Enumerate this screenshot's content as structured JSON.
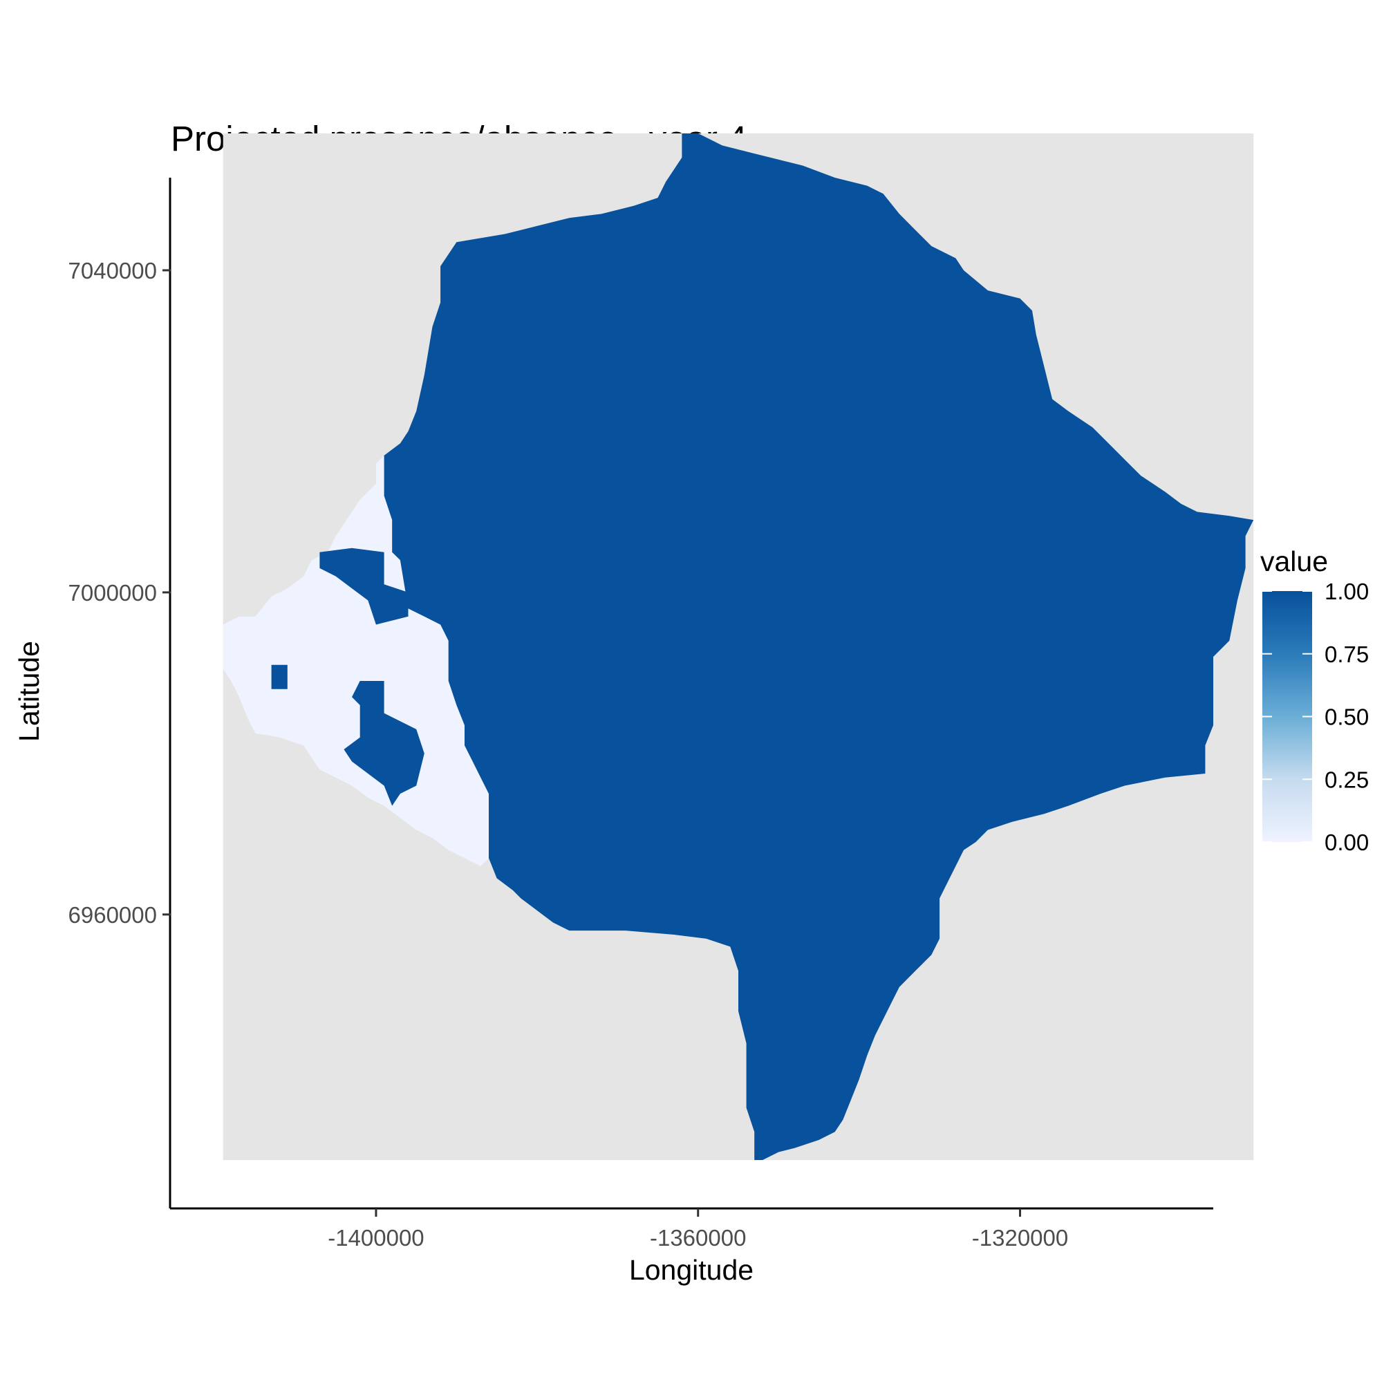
{
  "chart_data": {
    "type": "heatmap",
    "title": "Projected presence/absence - year 4",
    "xlabel": "Longitude",
    "ylabel": "Latitude",
    "xlim": [
      -1425500,
      -1296000
    ],
    "ylim": [
      6923500,
      7051500
    ],
    "x_ticks": [
      {
        "value": -1400000,
        "label": "-1400000"
      },
      {
        "value": -1360000,
        "label": "-1360000"
      },
      {
        "value": -1320000,
        "label": "-1320000"
      }
    ],
    "y_ticks": [
      {
        "value": 7040000,
        "label": "7040000"
      },
      {
        "value": 7000000,
        "label": "7000000"
      },
      {
        "value": 6960000,
        "label": "6960000"
      }
    ],
    "raster_extent": {
      "x": [
        -1419000,
        -1291000
      ],
      "y": [
        6929500,
        7057000
      ]
    },
    "na_color": "#e5e5e5",
    "scale": {
      "low": "#eff3ff",
      "mid": "#6baed6",
      "high": "#08519c"
    },
    "presence_region": {
      "value": 1,
      "polygon": [
        [
          -1360000,
          7057000
        ],
        [
          -1357000,
          7055500
        ],
        [
          -1353000,
          7054500
        ],
        [
          -1347000,
          7053000
        ],
        [
          -1343000,
          7051500
        ],
        [
          -1339000,
          7050500
        ],
        [
          -1337000,
          7049500
        ],
        [
          -1335000,
          7047000
        ],
        [
          -1333000,
          7045000
        ],
        [
          -1331000,
          7043000
        ],
        [
          -1328000,
          7041500
        ],
        [
          -1327000,
          7040000
        ],
        [
          -1324000,
          7037500
        ],
        [
          -1320000,
          7036500
        ],
        [
          -1318500,
          7035000
        ],
        [
          -1318000,
          7032000
        ],
        [
          -1317000,
          7028000
        ],
        [
          -1316000,
          7024000
        ],
        [
          -1314000,
          7022500
        ],
        [
          -1311000,
          7020500
        ],
        [
          -1309000,
          7018500
        ],
        [
          -1307000,
          7016500
        ],
        [
          -1305000,
          7014500
        ],
        [
          -1302000,
          7012500
        ],
        [
          -1300000,
          7011000
        ],
        [
          -1298000,
          7010000
        ],
        [
          -1294000,
          7009500
        ],
        [
          -1291000,
          7009000
        ],
        [
          -1292000,
          7007000
        ],
        [
          -1292000,
          7003000
        ],
        [
          -1293000,
          6999000
        ],
        [
          -1294000,
          6994000
        ],
        [
          -1296000,
          6992000
        ],
        [
          -1296000,
          6983500
        ],
        [
          -1297000,
          6981000
        ],
        [
          -1297000,
          6977500
        ],
        [
          -1302000,
          6977000
        ],
        [
          -1307000,
          6976000
        ],
        [
          -1310000,
          6975000
        ],
        [
          -1314000,
          6973500
        ],
        [
          -1317000,
          6972500
        ],
        [
          -1321000,
          6971500
        ],
        [
          -1324000,
          6970500
        ],
        [
          -1325500,
          6969000
        ],
        [
          -1327000,
          6968000
        ],
        [
          -1328000,
          6966000
        ],
        [
          -1329000,
          6964000
        ],
        [
          -1330000,
          6962000
        ],
        [
          -1330000,
          6957000
        ],
        [
          -1331000,
          6955000
        ],
        [
          -1333000,
          6953000
        ],
        [
          -1335000,
          6951000
        ],
        [
          -1336000,
          6949000
        ],
        [
          -1337000,
          6947000
        ],
        [
          -1338000,
          6945000
        ],
        [
          -1339000,
          6942500
        ],
        [
          -1340000,
          6939500
        ],
        [
          -1341000,
          6937000
        ],
        [
          -1342000,
          6934500
        ],
        [
          -1343000,
          6933000
        ],
        [
          -1345000,
          6932000
        ],
        [
          -1348000,
          6931000
        ],
        [
          -1350000,
          6930500
        ],
        [
          -1352000,
          6929500
        ],
        [
          -1353000,
          6929500
        ],
        [
          -1353000,
          6933000
        ],
        [
          -1354000,
          6936000
        ],
        [
          -1354000,
          6944000
        ],
        [
          -1355000,
          6948000
        ],
        [
          -1355000,
          6953000
        ],
        [
          -1356000,
          6956000
        ],
        [
          -1359000,
          6957000
        ],
        [
          -1363000,
          6957500
        ],
        [
          -1369000,
          6958000
        ],
        [
          -1376000,
          6958000
        ],
        [
          -1378000,
          6959000
        ],
        [
          -1380000,
          6960500
        ],
        [
          -1382000,
          6962000
        ],
        [
          -1383000,
          6963000
        ],
        [
          -1385000,
          6964500
        ],
        [
          -1386000,
          6967000
        ],
        [
          -1386000,
          6975000
        ],
        [
          -1387000,
          6977000
        ],
        [
          -1388000,
          6979000
        ],
        [
          -1389000,
          6981000
        ],
        [
          -1389000,
          6983500
        ],
        [
          -1390000,
          6986000
        ],
        [
          -1391000,
          6989000
        ],
        [
          -1391000,
          6994000
        ],
        [
          -1392000,
          6996000
        ],
        [
          -1394000,
          6997000
        ],
        [
          -1396000,
          6998000
        ],
        [
          -1396500,
          7001000
        ],
        [
          -1397000,
          7004000
        ],
        [
          -1398000,
          7005000
        ],
        [
          -1398000,
          7009000
        ],
        [
          -1399000,
          7012000
        ],
        [
          -1399000,
          7017000
        ],
        [
          -1397000,
          7018500
        ],
        [
          -1396000,
          7020000
        ],
        [
          -1395000,
          7022500
        ],
        [
          -1394000,
          7027000
        ],
        [
          -1393000,
          7033000
        ],
        [
          -1392000,
          7036000
        ],
        [
          -1392000,
          7040500
        ],
        [
          -1391000,
          7042000
        ],
        [
          -1390000,
          7043500
        ],
        [
          -1387000,
          7044000
        ],
        [
          -1384000,
          7044500
        ],
        [
          -1380000,
          7045500
        ],
        [
          -1376000,
          7046500
        ],
        [
          -1372000,
          7047000
        ],
        [
          -1368000,
          7048000
        ],
        [
          -1365000,
          7049000
        ],
        [
          -1364000,
          7051000
        ],
        [
          -1362000,
          7054000
        ],
        [
          -1362000,
          7057000
        ]
      ]
    },
    "absence_region": {
      "value": 0,
      "polygon": [
        [
          -1399000,
          7017000
        ],
        [
          -1398000,
          7015000
        ],
        [
          -1398000,
          7005000
        ],
        [
          -1397000,
          7004000
        ],
        [
          -1396500,
          7001000
        ],
        [
          -1396000,
          6998000
        ],
        [
          -1394000,
          6997000
        ],
        [
          -1392000,
          6996000
        ],
        [
          -1391000,
          6994000
        ],
        [
          -1391000,
          6989000
        ],
        [
          -1390000,
          6986000
        ],
        [
          -1389000,
          6983500
        ],
        [
          -1389000,
          6981000
        ],
        [
          -1388000,
          6979000
        ],
        [
          -1387000,
          6977000
        ],
        [
          -1386000,
          6975000
        ],
        [
          -1386000,
          6967000
        ],
        [
          -1387000,
          6966000
        ],
        [
          -1389000,
          6967000
        ],
        [
          -1391000,
          6968000
        ],
        [
          -1393000,
          6969500
        ],
        [
          -1395000,
          6970500
        ],
        [
          -1397000,
          6972000
        ],
        [
          -1399000,
          6973500
        ],
        [
          -1401000,
          6974500
        ],
        [
          -1403000,
          6976000
        ],
        [
          -1405000,
          6977000
        ],
        [
          -1407000,
          6978000
        ],
        [
          -1409000,
          6981000
        ],
        [
          -1412000,
          6982000
        ],
        [
          -1415000,
          6982500
        ],
        [
          -1416000,
          6984500
        ],
        [
          -1417000,
          6987000
        ],
        [
          -1418000,
          6989000
        ],
        [
          -1419000,
          6990500
        ],
        [
          -1419000,
          6996000
        ],
        [
          -1417000,
          6997000
        ],
        [
          -1415000,
          6997000
        ],
        [
          -1413000,
          6999500
        ],
        [
          -1411000,
          7000500
        ],
        [
          -1409000,
          7002000
        ],
        [
          -1408000,
          7004000
        ],
        [
          -1406000,
          7005000
        ],
        [
          -1405000,
          7007000
        ],
        [
          -1404000,
          7008500
        ],
        [
          -1403000,
          7010000
        ],
        [
          -1402000,
          7011500
        ],
        [
          -1400000,
          7013500
        ],
        [
          -1400000,
          7016000
        ]
      ]
    },
    "presence_islands": [
      {
        "value": 1,
        "polygon": [
          [
            -1407000,
            7005000
          ],
          [
            -1403000,
            7005500
          ],
          [
            -1399000,
            7005000
          ],
          [
            -1399000,
            7001000
          ],
          [
            -1396000,
            7000000
          ],
          [
            -1396000,
            6997000
          ],
          [
            -1400000,
            6996000
          ],
          [
            -1401000,
            6999000
          ],
          [
            -1403000,
            7000500
          ],
          [
            -1405000,
            7002000
          ],
          [
            -1407000,
            7003000
          ]
        ]
      },
      {
        "value": 1,
        "polygon": [
          [
            -1413000,
            6991000
          ],
          [
            -1411000,
            6991000
          ],
          [
            -1411000,
            6988000
          ],
          [
            -1413000,
            6988000
          ]
        ]
      },
      {
        "value": 1,
        "polygon": [
          [
            -1402000,
            6989000
          ],
          [
            -1399000,
            6989000
          ],
          [
            -1399000,
            6985000
          ],
          [
            -1397000,
            6984000
          ],
          [
            -1395000,
            6983000
          ],
          [
            -1394000,
            6980000
          ],
          [
            -1395000,
            6976000
          ],
          [
            -1397000,
            6975000
          ],
          [
            -1398000,
            6973500
          ],
          [
            -1399000,
            6976000
          ],
          [
            -1401000,
            6977500
          ],
          [
            -1403000,
            6979000
          ],
          [
            -1404000,
            6980500
          ],
          [
            -1402000,
            6982000
          ],
          [
            -1402000,
            6986000
          ],
          [
            -1403000,
            6987000
          ]
        ]
      }
    ]
  },
  "legend": {
    "title": "value",
    "labels": [
      "1.00",
      "0.75",
      "0.50",
      "0.25",
      "0.00"
    ],
    "values": [
      1,
      0.75,
      0.5,
      0.25,
      0
    ]
  }
}
